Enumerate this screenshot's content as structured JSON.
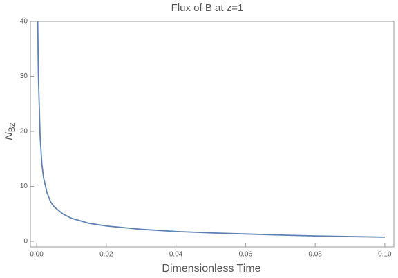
{
  "chart_data": {
    "type": "line",
    "title": "Flux of B at z=1",
    "x_label": "Dimensionless Time",
    "y_label": {
      "main": "N",
      "sub": "Bz"
    },
    "x": [
      0.0003,
      0.0005,
      0.001,
      0.0015,
      0.002,
      0.003,
      0.004,
      0.005,
      0.0075,
      0.01,
      0.015,
      0.02,
      0.03,
      0.04,
      0.05,
      0.06,
      0.07,
      0.08,
      0.09,
      0.1
    ],
    "series": [
      {
        "color": "#5e81b5",
        "values": [
          40,
          30,
          19,
          14,
          11.5,
          8.8,
          7.2,
          6.3,
          5.0,
          4.2,
          3.3,
          2.8,
          2.2,
          1.8,
          1.55,
          1.35,
          1.15,
          1.0,
          0.88,
          0.78
        ]
      }
    ],
    "xlim": [
      -0.0018,
      0.1026
    ],
    "ylim": [
      -1,
      40
    ],
    "xticks": [
      {
        "value": 0,
        "label": "0.00"
      },
      {
        "value": 0.02,
        "label": "0.02"
      },
      {
        "value": 0.04,
        "label": "0.04"
      },
      {
        "value": 0.06,
        "label": "0.06"
      },
      {
        "value": 0.08,
        "label": "0.08"
      },
      {
        "value": 0.1,
        "label": "0.10"
      }
    ],
    "yticks": [
      0,
      10,
      20,
      30,
      40
    ]
  }
}
